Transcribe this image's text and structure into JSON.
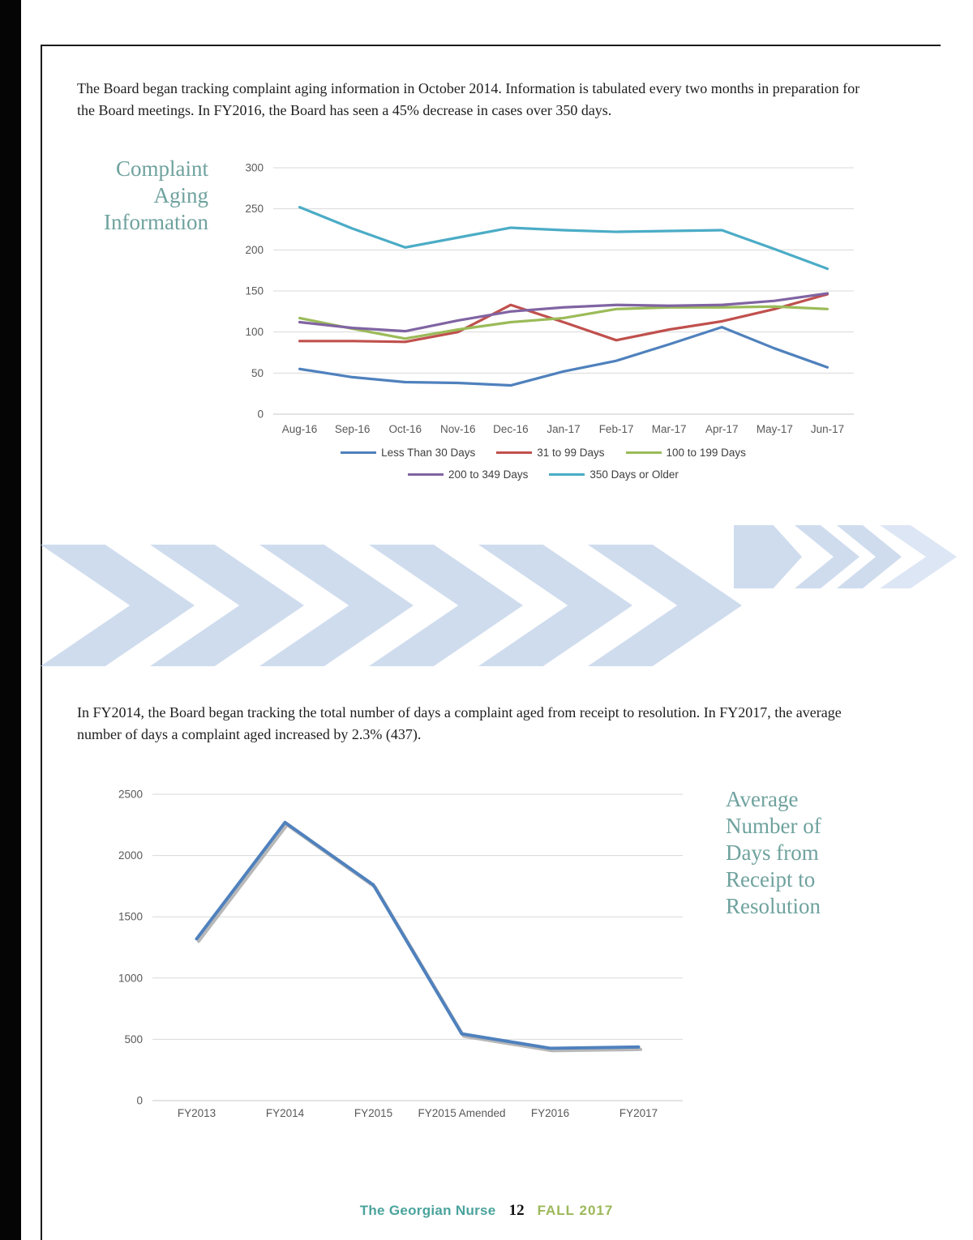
{
  "document": {
    "paragraph1": "The Board began tracking complaint aging information in October 2014. Information is tabulated every two months in preparation for the Board meetings. In FY2016, the Board has seen a 45% decrease in cases over 350 days.",
    "paragraph2": "In FY2014, the Board began tracking the total number of days a complaint aged from receipt to resolution. In FY2017, the average number of days a complaint aged increased by 2.3% (437)."
  },
  "footer": {
    "brand": "The Georgian Nurse",
    "page_number": "12",
    "issue": "FALL 2017"
  },
  "colors": {
    "accent_teal": "#6FA29E",
    "footer_teal": "#4BA39D",
    "footer_green": "#9CB85A",
    "decoration_blue": "#CFDCEE",
    "grid": "#D9D9D9",
    "axis_line": "#C9C9C9",
    "tick_text": "#595959",
    "shadow": "#A6A6A6"
  },
  "chart_data": [
    {
      "id": "complaint-aging",
      "type": "line",
      "title": "Complaint Aging Information",
      "title_lines": [
        "Complaint",
        "Aging",
        "Information"
      ],
      "xlabel": "",
      "ylabel": "",
      "ylim": [
        0,
        300
      ],
      "ytick": 50,
      "yticks": [
        0,
        50,
        100,
        150,
        200,
        250,
        300
      ],
      "grid": true,
      "legend_position": "bottom",
      "categories": [
        "Aug-16",
        "Sep-16",
        "Oct-16",
        "Nov-16",
        "Dec-16",
        "Jan-17",
        "Feb-17",
        "Mar-17",
        "Apr-17",
        "May-17",
        "Jun-17"
      ],
      "series": [
        {
          "name": "Less Than 30 Days",
          "color": "#4F81BD",
          "values": [
            55,
            45,
            39,
            38,
            35,
            52,
            65,
            85,
            106,
            80,
            57
          ]
        },
        {
          "name": "31 to 99 Days",
          "color": "#C0504D",
          "values": [
            89,
            89,
            88,
            100,
            133,
            112,
            90,
            103,
            113,
            128,
            146
          ]
        },
        {
          "name": "100 to 199 Days",
          "color": "#9BBB59",
          "values": [
            117,
            104,
            92,
            103,
            112,
            117,
            128,
            130,
            130,
            131,
            128
          ]
        },
        {
          "name": "200 to 349 Days",
          "color": "#8064A2",
          "values": [
            112,
            105,
            101,
            114,
            125,
            130,
            133,
            132,
            133,
            138,
            147
          ]
        },
        {
          "name": "350 Days or Older",
          "color": "#4BACC6",
          "values": [
            252,
            226,
            203,
            215,
            227,
            224,
            222,
            223,
            224,
            201,
            177
          ]
        }
      ],
      "legend_rows": [
        [
          0,
          1,
          2
        ],
        [
          3,
          4
        ]
      ]
    },
    {
      "id": "avg-days",
      "type": "line",
      "title": "Average Number of Days from Receipt to Resolution",
      "title_lines": [
        "Average",
        "Number of",
        "Days from",
        "Receipt to",
        "Resolution"
      ],
      "xlabel": "",
      "ylabel": "",
      "ylim": [
        0,
        2500
      ],
      "ytick": 500,
      "yticks": [
        0,
        500,
        1000,
        1500,
        2000,
        2500
      ],
      "grid": true,
      "legend_position": "none",
      "categories": [
        "FY2013",
        "FY2014",
        "FY2015",
        "FY2015 Amended",
        "FY2016",
        "FY2017"
      ],
      "series": [
        {
          "name": "Average Days from Receipt to Resolution",
          "color": "#4F81BD",
          "shadow": true,
          "values": [
            1320,
            2270,
            1760,
            545,
            427,
            437
          ]
        }
      ]
    }
  ]
}
